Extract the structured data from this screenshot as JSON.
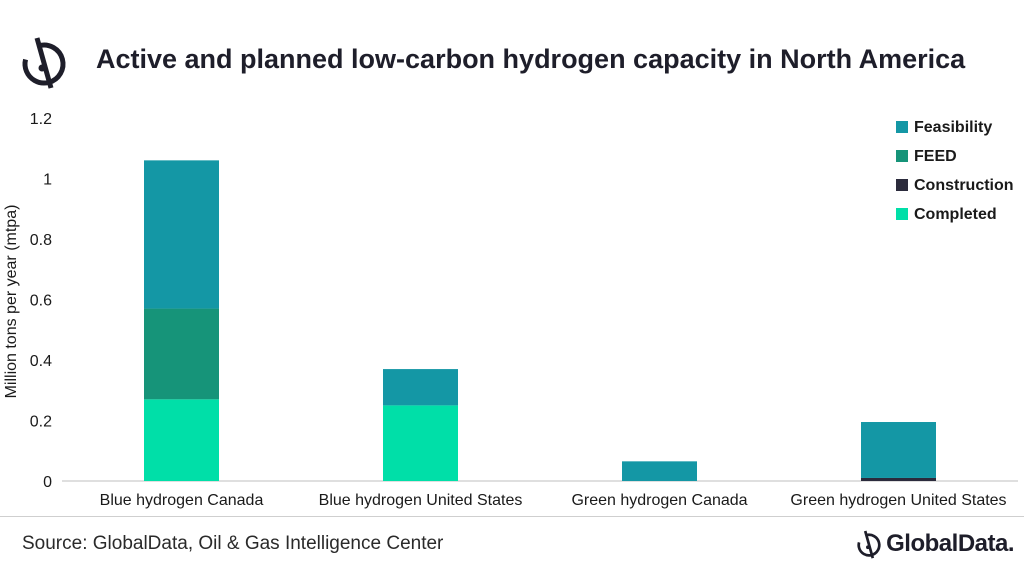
{
  "header": {
    "title": "Active and planned low-carbon hydrogen capacity in North America"
  },
  "footer": {
    "source": "Source: GlobalData, Oil & Gas Intelligence Center",
    "brand": "GlobalData."
  },
  "icons": {
    "header_logo": "globaldata-logo-icon",
    "footer_logo": "globaldata-logo-icon"
  },
  "chart_data": {
    "type": "bar",
    "stacked": true,
    "title": "Active and planned low-carbon hydrogen capacity in North America",
    "xlabel": "",
    "ylabel": "Million tons per year (mtpa)",
    "ylim": [
      0,
      1.2
    ],
    "yticks": [
      "0",
      "0.2",
      "0.4",
      "0.6",
      "0.8",
      "1",
      "1.2"
    ],
    "grid": false,
    "legend_position": "top-right",
    "categories": [
      "Blue hydrogen Canada",
      "Blue hydrogen United States",
      "Green hydrogen Canada",
      "Green hydrogen United States"
    ],
    "series": [
      {
        "name": "Completed",
        "color": "#00DFA8",
        "values": [
          0.27,
          0.25,
          0,
          0
        ]
      },
      {
        "name": "Construction",
        "color": "#2B2B3C",
        "values": [
          0,
          0,
          0,
          0.01
        ]
      },
      {
        "name": "FEED",
        "color": "#169479",
        "values": [
          0.3,
          0,
          0,
          0
        ]
      },
      {
        "name": "Feasibility",
        "color": "#1497A5",
        "values": [
          0.49,
          0.12,
          0.065,
          0.185
        ]
      }
    ],
    "legend_order": [
      "Feasibility",
      "FEED",
      "Construction",
      "Completed"
    ]
  }
}
